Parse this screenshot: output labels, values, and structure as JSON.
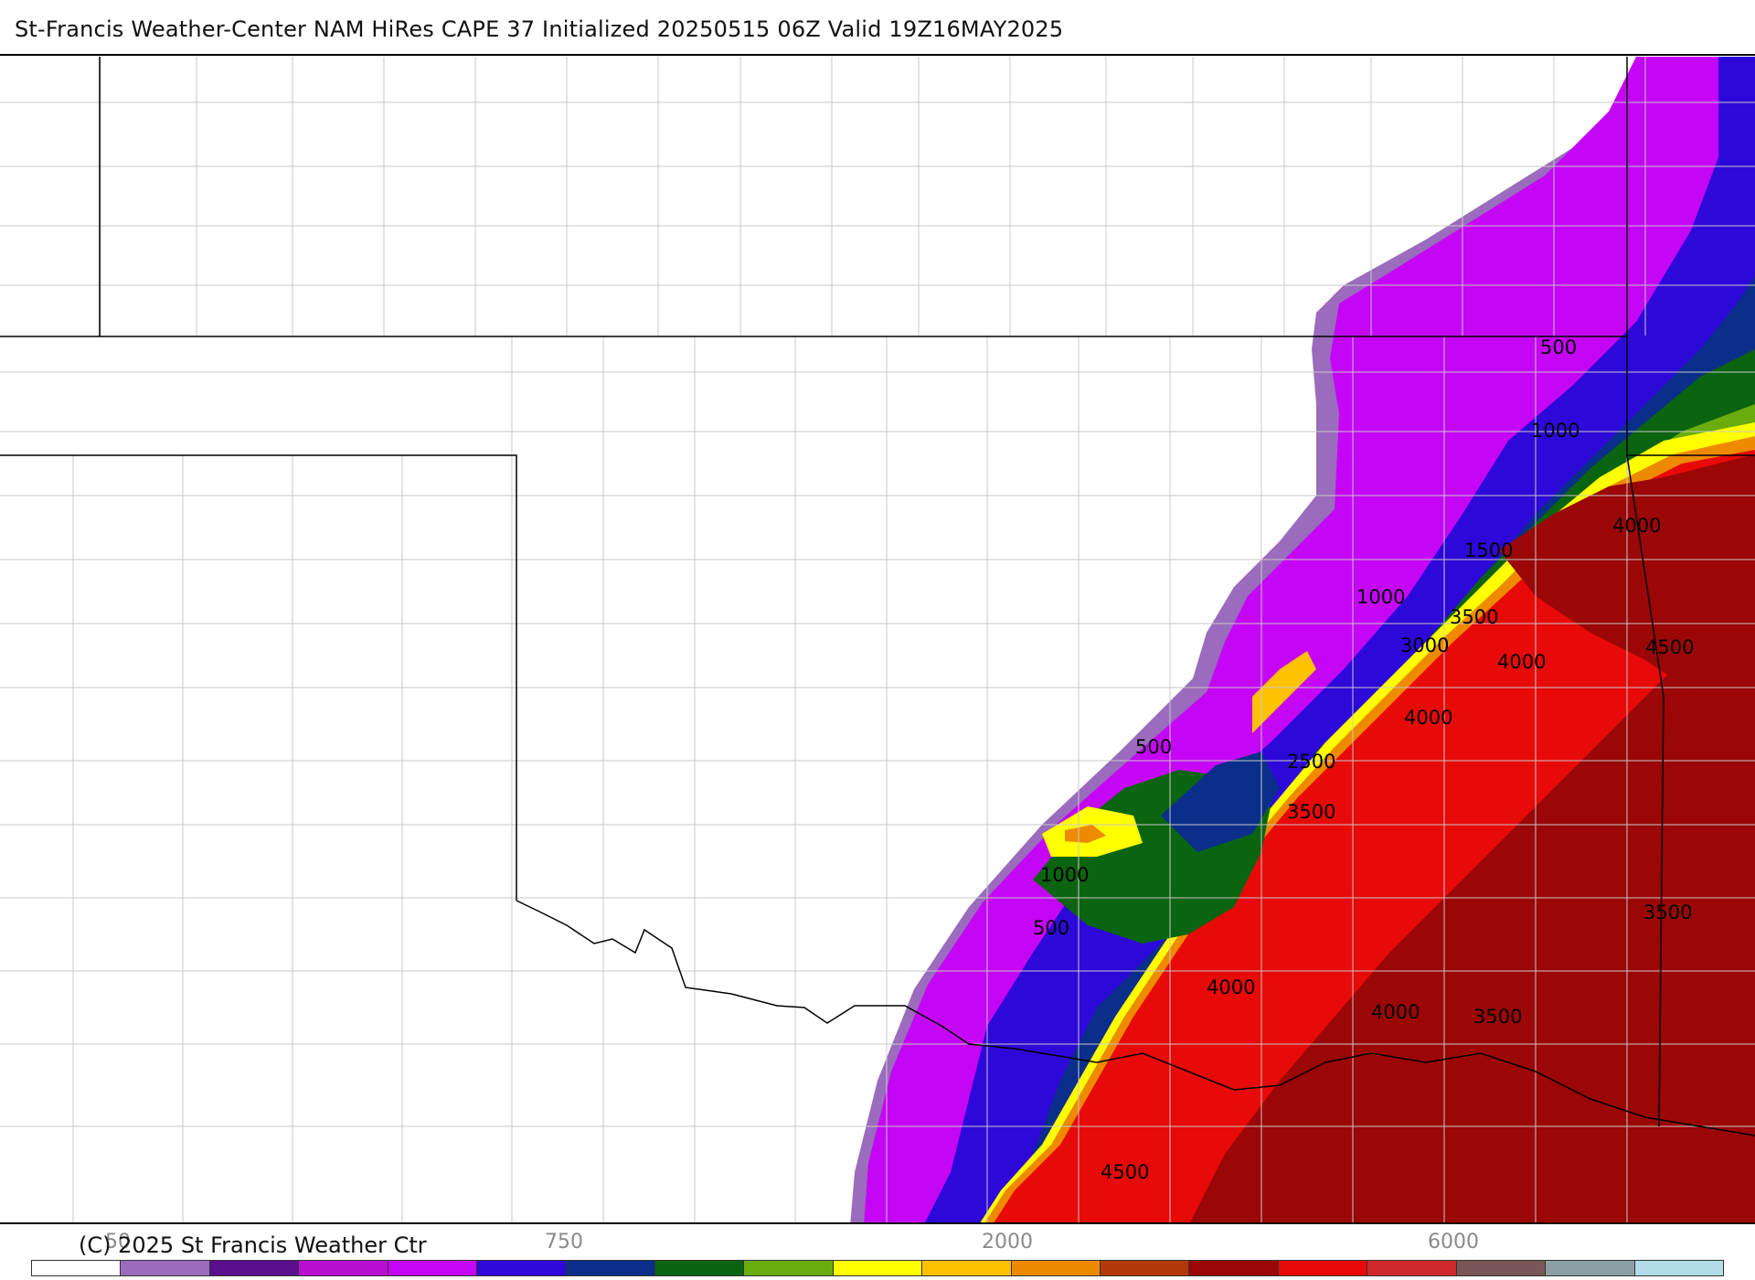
{
  "header": {
    "title": "St-Francis Weather-Center NAM HiRes CAPE  37 Initialized 20250515 06Z Valid 19Z16MAY2025"
  },
  "map": {
    "contour_labels": [
      "500",
      "1000",
      "1500",
      "1000",
      "3500",
      "3000",
      "4000",
      "4000",
      "4500",
      "500",
      "2500",
      "3500",
      "4000",
      "1000",
      "500",
      "3500",
      "4000",
      "4000",
      "3500",
      "4500"
    ]
  },
  "legend": {
    "copyright": "(C) 2025 St Francis Weather Ctr",
    "scale_labels": [
      "50",
      "750",
      "2000",
      "6000"
    ],
    "colors": [
      "#ffffff",
      "#9b6bbd",
      "#5a0f8e",
      "#b90fd2",
      "#c505f5",
      "#2d08d8",
      "#0a2e8a",
      "#0b6410",
      "#6aac0c",
      "#ffff00",
      "#ffc200",
      "#ee8a00",
      "#b23a0a",
      "#9b0606",
      "#e80909",
      "#d0292b",
      "#7b5656",
      "#8e9ea6",
      "#b2dde6"
    ]
  }
}
